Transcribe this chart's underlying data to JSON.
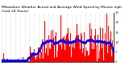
{
  "title": "Milwaukee Weather Actual and Average Wind Speed by Minute mph (Last 24 Hours)",
  "background_color": "#ffffff",
  "plot_background": "#ffffff",
  "bar_color": "#ff0000",
  "avg_color": "#0000ff",
  "grid_color": "#bbbbbb",
  "ylim": [
    0,
    25
  ],
  "n_points": 1440,
  "n_xticks": 25,
  "title_fontsize": 3.2,
  "axis_fontsize": 2.8,
  "ylabel_fontsize": 2.8,
  "figsize": [
    1.6,
    0.87
  ],
  "dpi": 100
}
